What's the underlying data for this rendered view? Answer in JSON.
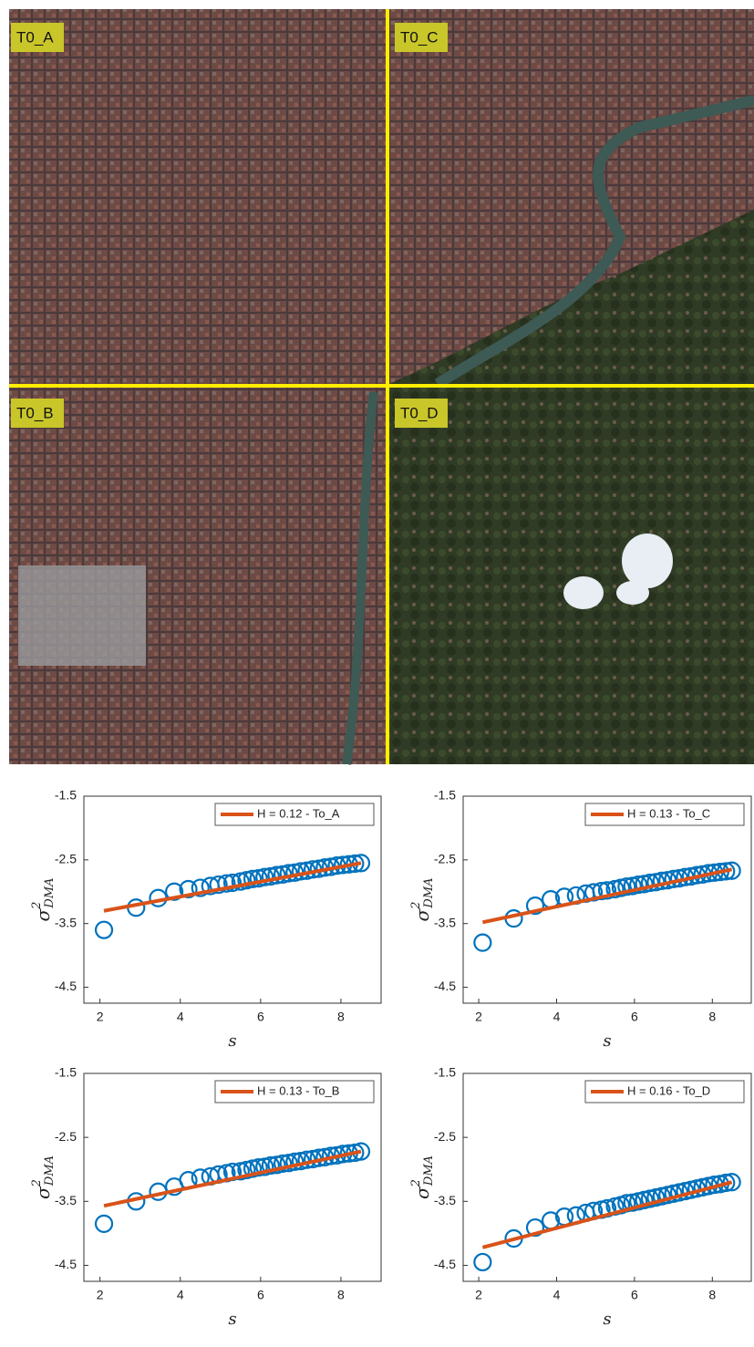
{
  "image": {
    "panels": [
      {
        "label": "T0_A"
      },
      {
        "label": "T0_C"
      },
      {
        "label": "T0_B"
      },
      {
        "label": "T0_D"
      }
    ]
  },
  "chart_data": [
    {
      "type": "scatter",
      "xlabel": "s",
      "ylabel": {
        "base": "σ",
        "sup": "2",
        "sub": "DMA"
      },
      "xlim": [
        1.6,
        9.0
      ],
      "xticks": [
        2,
        4,
        6,
        8
      ],
      "ylim": [
        -4.75,
        -1.5
      ],
      "yticks": [
        -1.5,
        -2.5,
        -3.5,
        -4.5
      ],
      "legend": "upper right",
      "x": [
        2.1,
        2.9,
        3.45,
        3.85,
        4.2,
        4.5,
        4.75,
        4.95,
        5.15,
        5.3,
        5.5,
        5.65,
        5.8,
        5.95,
        6.1,
        6.25,
        6.4,
        6.55,
        6.7,
        6.85,
        7.0,
        7.15,
        7.3,
        7.45,
        7.6,
        7.75,
        7.9,
        8.05,
        8.2,
        8.35,
        8.5
      ],
      "series": [
        {
          "color": "#0072bd",
          "values": [
            -3.6,
            -3.25,
            -3.1,
            -3.0,
            -2.96,
            -2.94,
            -2.91,
            -2.89,
            -2.87,
            -2.86,
            -2.84,
            -2.82,
            -2.8,
            -2.79,
            -2.77,
            -2.76,
            -2.74,
            -2.73,
            -2.71,
            -2.7,
            -2.68,
            -2.67,
            -2.65,
            -2.64,
            -2.62,
            -2.61,
            -2.59,
            -2.58,
            -2.57,
            -2.56,
            -2.55
          ]
        },
        {
          "name": "H = 0.12 - To_A",
          "color": "#d95319",
          "x": [
            2.1,
            8.5
          ],
          "values": [
            -3.3,
            -2.55
          ]
        }
      ]
    },
    {
      "type": "scatter",
      "xlabel": "s",
      "ylabel": {
        "base": "σ",
        "sup": "2",
        "sub": "DMA"
      },
      "xlim": [
        1.6,
        9.0
      ],
      "xticks": [
        2,
        4,
        6,
        8
      ],
      "ylim": [
        -4.75,
        -1.5
      ],
      "yticks": [
        -1.5,
        -2.5,
        -3.5,
        -4.5
      ],
      "legend": "upper right",
      "x": [
        2.1,
        2.9,
        3.45,
        3.85,
        4.2,
        4.5,
        4.75,
        4.95,
        5.15,
        5.3,
        5.5,
        5.65,
        5.8,
        5.95,
        6.1,
        6.25,
        6.4,
        6.55,
        6.7,
        6.85,
        7.0,
        7.15,
        7.3,
        7.45,
        7.6,
        7.75,
        7.9,
        8.05,
        8.2,
        8.35,
        8.5
      ],
      "series": [
        {
          "color": "#0072bd",
          "values": [
            -3.8,
            -3.42,
            -3.22,
            -3.12,
            -3.08,
            -3.06,
            -3.03,
            -3.01,
            -2.99,
            -2.98,
            -2.96,
            -2.94,
            -2.92,
            -2.91,
            -2.89,
            -2.88,
            -2.86,
            -2.85,
            -2.83,
            -2.82,
            -2.8,
            -2.79,
            -2.77,
            -2.76,
            -2.74,
            -2.73,
            -2.71,
            -2.7,
            -2.69,
            -2.68,
            -2.67
          ]
        },
        {
          "name": "H = 0.13 - To_C",
          "color": "#d95319",
          "x": [
            2.1,
            8.5
          ],
          "values": [
            -3.48,
            -2.65
          ]
        }
      ]
    },
    {
      "type": "scatter",
      "xlabel": "s",
      "ylabel": {
        "base": "σ",
        "sup": "2",
        "sub": "DMA"
      },
      "xlim": [
        1.6,
        9.0
      ],
      "xticks": [
        2,
        4,
        6,
        8
      ],
      "ylim": [
        -4.75,
        -1.5
      ],
      "yticks": [
        -1.5,
        -2.5,
        -3.5,
        -4.5
      ],
      "legend": "upper right",
      "x": [
        2.1,
        2.9,
        3.45,
        3.85,
        4.2,
        4.5,
        4.75,
        4.95,
        5.15,
        5.3,
        5.5,
        5.65,
        5.8,
        5.95,
        6.1,
        6.25,
        6.4,
        6.55,
        6.7,
        6.85,
        7.0,
        7.15,
        7.3,
        7.45,
        7.6,
        7.75,
        7.9,
        8.05,
        8.2,
        8.35,
        8.5
      ],
      "series": [
        {
          "color": "#0072bd",
          "values": [
            -3.85,
            -3.5,
            -3.35,
            -3.27,
            -3.17,
            -3.13,
            -3.11,
            -3.08,
            -3.06,
            -3.04,
            -3.03,
            -3.01,
            -2.99,
            -2.97,
            -2.96,
            -2.94,
            -2.93,
            -2.91,
            -2.9,
            -2.88,
            -2.87,
            -2.85,
            -2.84,
            -2.82,
            -2.81,
            -2.79,
            -2.78,
            -2.76,
            -2.75,
            -2.74,
            -2.72
          ]
        },
        {
          "name": "H = 0.13 - To_B",
          "color": "#d95319",
          "x": [
            2.1,
            8.5
          ],
          "values": [
            -3.57,
            -2.72
          ]
        }
      ]
    },
    {
      "type": "scatter",
      "xlabel": "s",
      "ylabel": {
        "base": "σ",
        "sup": "2",
        "sub": "DMA"
      },
      "xlim": [
        1.6,
        9.0
      ],
      "xticks": [
        2,
        4,
        6,
        8
      ],
      "ylim": [
        -4.75,
        -1.5
      ],
      "yticks": [
        -1.5,
        -2.5,
        -3.5,
        -4.5
      ],
      "legend": "upper right",
      "x": [
        2.1,
        2.9,
        3.45,
        3.85,
        4.2,
        4.5,
        4.75,
        4.95,
        5.15,
        5.3,
        5.5,
        5.65,
        5.8,
        5.95,
        6.1,
        6.25,
        6.4,
        6.55,
        6.7,
        6.85,
        7.0,
        7.15,
        7.3,
        7.45,
        7.6,
        7.75,
        7.9,
        8.05,
        8.2,
        8.35,
        8.5
      ],
      "series": [
        {
          "color": "#0072bd",
          "values": [
            -4.45,
            -4.08,
            -3.91,
            -3.8,
            -3.74,
            -3.72,
            -3.68,
            -3.65,
            -3.63,
            -3.61,
            -3.58,
            -3.56,
            -3.53,
            -3.52,
            -3.5,
            -3.48,
            -3.46,
            -3.44,
            -3.42,
            -3.4,
            -3.38,
            -3.36,
            -3.34,
            -3.32,
            -3.3,
            -3.28,
            -3.26,
            -3.24,
            -3.23,
            -3.21,
            -3.2
          ]
        },
        {
          "name": "H = 0.16 - To_D",
          "color": "#d95319",
          "x": [
            2.1,
            8.5
          ],
          "values": [
            -4.22,
            -3.2
          ]
        }
      ]
    }
  ]
}
